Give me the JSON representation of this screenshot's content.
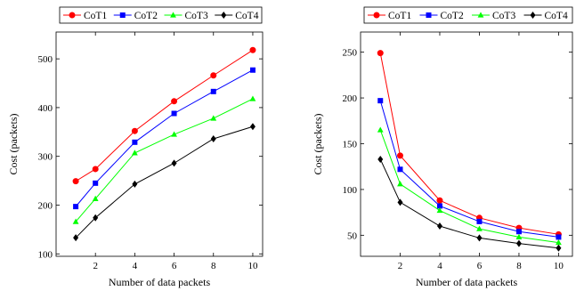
{
  "chart_data": [
    {
      "type": "line",
      "title": "",
      "xlabel": "Number of data packets",
      "ylabel": "Cost (packets)",
      "x": [
        1,
        2,
        4,
        6,
        8,
        10
      ],
      "x_ticks": [
        2,
        4,
        6,
        8,
        10
      ],
      "y_ticks": [
        100,
        200,
        300,
        400,
        500
      ],
      "xlim": [
        0,
        10.5
      ],
      "ylim": [
        95,
        555
      ],
      "legend_position": "top",
      "grid": false,
      "series": [
        {
          "name": "CoT1",
          "color": "#ff0000",
          "marker": "circle",
          "values": [
            249,
            274,
            352,
            413,
            466,
            518
          ]
        },
        {
          "name": "CoT2",
          "color": "#0000ff",
          "marker": "square",
          "values": [
            197,
            245,
            329,
            388,
            433,
            477
          ]
        },
        {
          "name": "CoT3",
          "color": "#00ff00",
          "marker": "triangle",
          "values": [
            166,
            213,
            307,
            345,
            378,
            418
          ]
        },
        {
          "name": "CoT4",
          "color": "#000000",
          "marker": "diamond",
          "values": [
            133,
            174,
            243,
            286,
            336,
            361
          ]
        }
      ]
    },
    {
      "type": "line",
      "title": "",
      "xlabel": "Number of data packets",
      "ylabel": "Cost (packets)",
      "x": [
        1,
        2,
        4,
        6,
        8,
        10
      ],
      "x_ticks": [
        2,
        4,
        6,
        8,
        10
      ],
      "y_ticks": [
        50,
        100,
        150,
        200,
        250
      ],
      "xlim": [
        0,
        10.7
      ],
      "ylim": [
        27,
        272
      ],
      "legend_position": "top",
      "grid": false,
      "series": [
        {
          "name": "CoT1",
          "color": "#ff0000",
          "marker": "circle",
          "values": [
            249,
            137,
            88,
            69,
            58,
            51
          ]
        },
        {
          "name": "CoT2",
          "color": "#0000ff",
          "marker": "square",
          "values": [
            197,
            122,
            82,
            65,
            54,
            48
          ]
        },
        {
          "name": "CoT3",
          "color": "#00ff00",
          "marker": "triangle",
          "values": [
            165,
            106,
            77,
            57,
            48,
            42
          ]
        },
        {
          "name": "CoT4",
          "color": "#000000",
          "marker": "diamond",
          "values": [
            133,
            86,
            60,
            47,
            41,
            36
          ]
        }
      ]
    }
  ]
}
